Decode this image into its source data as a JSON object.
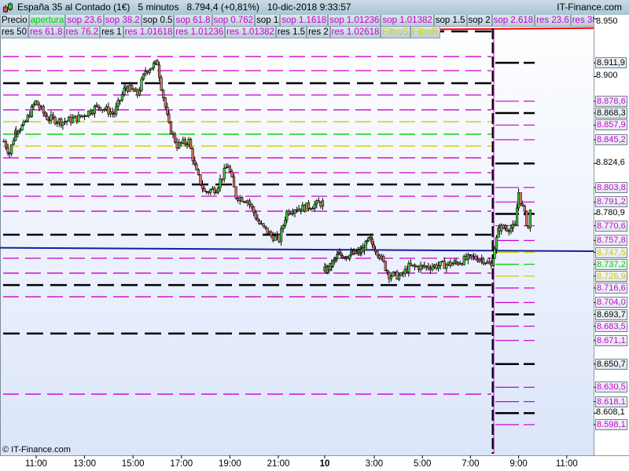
{
  "header": {
    "title": "España 35 al Contado (1€)   5 minutos   8.794,4 (+0,81%)   10-dic-2018 9:33:57",
    "brand": "IT-Finance.com",
    "copyright": "© IT-Finance.com"
  },
  "legend_row1": [
    {
      "label": "Precio",
      "color": "#000000"
    },
    {
      "label": "apertura",
      "color": "#00cc00"
    },
    {
      "label": "sop 23.6",
      "color": "#cc00cc"
    },
    {
      "label": "sop 38.2",
      "color": "#cc00cc"
    },
    {
      "label": "sop 0.5",
      "color": "#000000"
    },
    {
      "label": "sop 61.8",
      "color": "#cc00cc"
    },
    {
      "label": "sop 0.762",
      "color": "#cc00cc"
    },
    {
      "label": "sop 1",
      "color": "#000000"
    },
    {
      "label": "sop 1.1618",
      "color": "#cc00cc"
    },
    {
      "label": "sop 1.01236",
      "color": "#cc00cc"
    },
    {
      "label": "sop 1.01382",
      "color": "#cc00cc"
    },
    {
      "label": "sop 1.5",
      "color": "#000000"
    },
    {
      "label": "sop 2",
      "color": "#000000"
    },
    {
      "label": "sop 2.618",
      "color": "#cc00cc"
    },
    {
      "label": "res 23.6",
      "color": "#cc00cc"
    },
    {
      "label": "res 38.2",
      "color": "#cc00cc"
    }
  ],
  "legend_row2": [
    {
      "label": "res 50",
      "color": "#000000"
    },
    {
      "label": "res 61.8",
      "color": "#cc00cc"
    },
    {
      "label": "res 76.2",
      "color": "#cc00cc"
    },
    {
      "label": "res 1",
      "color": "#000000"
    },
    {
      "label": "res 1.01618",
      "color": "#cc00cc"
    },
    {
      "label": "res 1.01236",
      "color": "#cc00cc"
    },
    {
      "label": "res 1.01382",
      "color": "#cc00cc"
    },
    {
      "label": "res 1.5",
      "color": "#000000"
    },
    {
      "label": "res 2",
      "color": "#000000"
    },
    {
      "label": "res 1.02618",
      "color": "#cc00cc"
    },
    {
      "label": "FiltroS",
      "color": "#cccc00"
    },
    {
      "label": "FiltroR",
      "color": "#cccc00"
    }
  ],
  "price_axis": [
    {
      "value": 8950,
      "label": "8.950",
      "color": "#000000",
      "boxed": false
    },
    {
      "value": 8911.9,
      "label": "8.911,9",
      "color": "#000000",
      "boxed": true
    },
    {
      "value": 8900,
      "label": "8.900",
      "color": "#000000",
      "boxed": false
    },
    {
      "value": 8878.6,
      "label": "8.878,6",
      "color": "#cc00cc",
      "boxed": true
    },
    {
      "value": 8868.3,
      "label": "8.868,3",
      "color": "#000000",
      "boxed": true
    },
    {
      "value": 8857.9,
      "label": "8.857,9",
      "color": "#cc00cc",
      "boxed": true
    },
    {
      "value": 8845.2,
      "label": "8.845,2",
      "color": "#cc00cc",
      "boxed": true
    },
    {
      "value": 8824.6,
      "label": "8.824,6",
      "color": "#000000",
      "boxed": false
    },
    {
      "value": 8803.8,
      "label": "8.803,8",
      "color": "#cc00cc",
      "boxed": true
    },
    {
      "value": 8791.2,
      "label": "8.791,2",
      "color": "#cc00cc",
      "boxed": true
    },
    {
      "value": 8780.9,
      "label": "8.780,9",
      "color": "#000000",
      "boxed": false
    },
    {
      "value": 8770.6,
      "label": "8.770,6",
      "color": "#cc00cc",
      "boxed": true
    },
    {
      "value": 8757.8,
      "label": "8.757,8",
      "color": "#cc00cc",
      "boxed": true
    },
    {
      "value": 8747.5,
      "label": "8.747,5",
      "color": "#cccc00",
      "boxed": true
    },
    {
      "value": 8737.2,
      "label": "8.737,2",
      "color": "#00cc00",
      "boxed": true
    },
    {
      "value": 8726.9,
      "label": "8.726,9",
      "color": "#cccc00",
      "boxed": true
    },
    {
      "value": 8716.6,
      "label": "8.716,6",
      "color": "#cc00cc",
      "boxed": true
    },
    {
      "value": 8704.0,
      "label": "8.704,0",
      "color": "#cc00cc",
      "boxed": true
    },
    {
      "value": 8693.7,
      "label": "8.693,7",
      "color": "#000000",
      "boxed": true
    },
    {
      "value": 8683.5,
      "label": "8.683,5",
      "color": "#cc00cc",
      "boxed": true
    },
    {
      "value": 8671.1,
      "label": "8.671,1",
      "color": "#cc00cc",
      "boxed": true
    },
    {
      "value": 8650.7,
      "label": "8.650,7",
      "color": "#000000",
      "boxed": true
    },
    {
      "value": 8630.5,
      "label": "8.630,5",
      "color": "#cc00cc",
      "boxed": true
    },
    {
      "value": 8618.1,
      "label": "8.618,1",
      "color": "#cc00cc",
      "boxed": true
    },
    {
      "value": 8608.1,
      "label": "8.608,1",
      "color": "#000000",
      "boxed": false
    },
    {
      "value": 8598.1,
      "label": "8.598,1",
      "color": "#cc00cc",
      "boxed": true
    }
  ],
  "time_axis": [
    {
      "label": "11:00",
      "day": 9,
      "time": "11:00"
    },
    {
      "label": "13:00",
      "day": 9,
      "time": "13:00"
    },
    {
      "label": "15:00",
      "day": 9,
      "time": "15:00"
    },
    {
      "label": "17:00",
      "day": 9,
      "time": "17:00"
    },
    {
      "label": "19:00",
      "day": 9,
      "time": "19:00"
    },
    {
      "label": "21:00",
      "day": 9,
      "time": "21:00"
    },
    {
      "label": "10",
      "day": 10,
      "time": "00:00",
      "bold": true
    },
    {
      "label": "3:00",
      "day": 10,
      "time": "03:00"
    },
    {
      "label": "5:00",
      "day": 10,
      "time": "05:00"
    },
    {
      "label": "7:00",
      "day": 10,
      "time": "07:00"
    },
    {
      "label": "9:00",
      "day": 10,
      "time": "09:00"
    },
    {
      "label": "11:00",
      "day": 10,
      "time": "11:00"
    }
  ],
  "chart_data": {
    "type": "candlestick",
    "interval": "5 minutos",
    "colors": {
      "up": "#44cc44",
      "down": "#e07070",
      "support_resistance": "#cc00cc",
      "pivot": "#000000",
      "filter": "#cccc00",
      "open": "#00cc00",
      "trend_blue": "#1020a0",
      "trend_red": "#ff0000"
    },
    "close_path": [
      {
        "day": 9,
        "time": "09:40",
        "price": 8843.8
      },
      {
        "day": 9,
        "time": "09:54",
        "price": 8833.6
      },
      {
        "day": 9,
        "time": "10:10",
        "price": 8854.0
      },
      {
        "day": 9,
        "time": "10:29",
        "price": 8857.4
      },
      {
        "day": 9,
        "time": "10:58",
        "price": 8877.9
      },
      {
        "day": 9,
        "time": "11:27",
        "price": 8864.2
      },
      {
        "day": 9,
        "time": "12:06",
        "price": 8860.8
      },
      {
        "day": 9,
        "time": "12:45",
        "price": 8864.2
      },
      {
        "day": 9,
        "time": "13:34",
        "price": 8874.5
      },
      {
        "day": 9,
        "time": "14:13",
        "price": 8867.7
      },
      {
        "day": 9,
        "time": "14:42",
        "price": 8891.5
      },
      {
        "day": 9,
        "time": "15:11",
        "price": 8884.7
      },
      {
        "day": 9,
        "time": "15:31",
        "price": 8905.1
      },
      {
        "day": 9,
        "time": "16:00",
        "price": 8911.9
      },
      {
        "day": 9,
        "time": "16:10",
        "price": 8891.5
      },
      {
        "day": 9,
        "time": "16:29",
        "price": 8857.4
      },
      {
        "day": 9,
        "time": "16:49",
        "price": 8840.4
      },
      {
        "day": 9,
        "time": "17:18",
        "price": 8843.8
      },
      {
        "day": 9,
        "time": "17:37",
        "price": 8816.6
      },
      {
        "day": 9,
        "time": "17:57",
        "price": 8799.6
      },
      {
        "day": 9,
        "time": "18:26",
        "price": 8803.0
      },
      {
        "day": 9,
        "time": "18:55",
        "price": 8823.4
      },
      {
        "day": 9,
        "time": "19:15",
        "price": 8796.2
      },
      {
        "day": 9,
        "time": "19:44",
        "price": 8792.8
      },
      {
        "day": 9,
        "time": "20:13",
        "price": 8772.3
      },
      {
        "day": 9,
        "time": "20:42",
        "price": 8762.1
      },
      {
        "day": 9,
        "time": "21:02",
        "price": 8758.7
      },
      {
        "day": 9,
        "time": "21:21",
        "price": 8782.6
      },
      {
        "day": 9,
        "time": "21:41",
        "price": 8786.0
      },
      {
        "day": 9,
        "time": "22:00",
        "price": 8786.0
      },
      {
        "day": 9,
        "time": "22:20",
        "price": 8788.0
      },
      {
        "day": 9,
        "time": "22:53",
        "price": 8790.7
      },
      {
        "day": 10,
        "time": "00:00",
        "price": 8731.5
      },
      {
        "day": 10,
        "time": "00:20",
        "price": 8734.9
      },
      {
        "day": 10,
        "time": "00:49",
        "price": 8745.1
      },
      {
        "day": 10,
        "time": "01:31",
        "price": 8745.1
      },
      {
        "day": 10,
        "time": "02:14",
        "price": 8748.5
      },
      {
        "day": 10,
        "time": "02:43",
        "price": 8758.7
      },
      {
        "day": 10,
        "time": "03:08",
        "price": 8748.5
      },
      {
        "day": 10,
        "time": "03:37",
        "price": 8728.1
      },
      {
        "day": 10,
        "time": "04:07",
        "price": 8726.7
      },
      {
        "day": 10,
        "time": "04:26",
        "price": 8734.9
      },
      {
        "day": 10,
        "time": "05:05",
        "price": 8734.9
      },
      {
        "day": 10,
        "time": "05:45",
        "price": 8736.3
      },
      {
        "day": 10,
        "time": "06:24",
        "price": 8738.3
      },
      {
        "day": 10,
        "time": "07:03",
        "price": 8743.1
      },
      {
        "day": 10,
        "time": "07:32",
        "price": 8741.7
      },
      {
        "day": 10,
        "time": "07:52",
        "price": 8734.9
      },
      {
        "day": 10,
        "time": "08:00",
        "price": 8751.9
      },
      {
        "day": 10,
        "time": "08:12",
        "price": 8768.9
      },
      {
        "day": 10,
        "time": "08:31",
        "price": 8768.9
      },
      {
        "day": 10,
        "time": "08:51",
        "price": 8768.9
      },
      {
        "day": 10,
        "time": "09:00",
        "price": 8799.6
      },
      {
        "day": 10,
        "time": "09:10",
        "price": 8786.0
      },
      {
        "day": 10,
        "time": "09:24",
        "price": 8768.9
      },
      {
        "day": 10,
        "time": "09:33",
        "price": 8794.4
      }
    ],
    "previous_session_levels": [
      {
        "price": 8939.1,
        "kind": "pivot"
      },
      {
        "price": 8917.3,
        "kind": "support_resistance"
      },
      {
        "price": 8905.1,
        "kind": "support_resistance"
      },
      {
        "price": 8894.2,
        "kind": "pivot"
      },
      {
        "price": 8884.0,
        "kind": "support_resistance"
      },
      {
        "price": 8871.1,
        "kind": "support_resistance"
      },
      {
        "price": 8860.8,
        "kind": "filter"
      },
      {
        "price": 8850.0,
        "kind": "open"
      },
      {
        "price": 8839.7,
        "kind": "filter"
      },
      {
        "price": 8829.5,
        "kind": "support_resistance"
      },
      {
        "price": 8816.6,
        "kind": "support_resistance"
      },
      {
        "price": 8806.4,
        "kind": "pivot"
      },
      {
        "price": 8796.2,
        "kind": "support_resistance"
      },
      {
        "price": 8783.2,
        "kind": "support_resistance"
      },
      {
        "price": 8762.8,
        "kind": "pivot"
      },
      {
        "price": 8742.4,
        "kind": "support_resistance"
      },
      {
        "price": 8729.5,
        "kind": "support_resistance"
      },
      {
        "price": 8719.2,
        "kind": "pivot"
      },
      {
        "price": 8709.0,
        "kind": "support_resistance"
      },
      {
        "price": 8677.1,
        "kind": "pivot"
      },
      {
        "price": 8624.6,
        "kind": "support_resistance"
      }
    ],
    "blue_trendline": [
      8751.5,
      8748.5
    ],
    "red_trendline": [
      8938,
      8942
    ],
    "session_separator": {
      "day": 10,
      "time": "08:00"
    },
    "ylim": [
      8585,
      8955
    ]
  }
}
